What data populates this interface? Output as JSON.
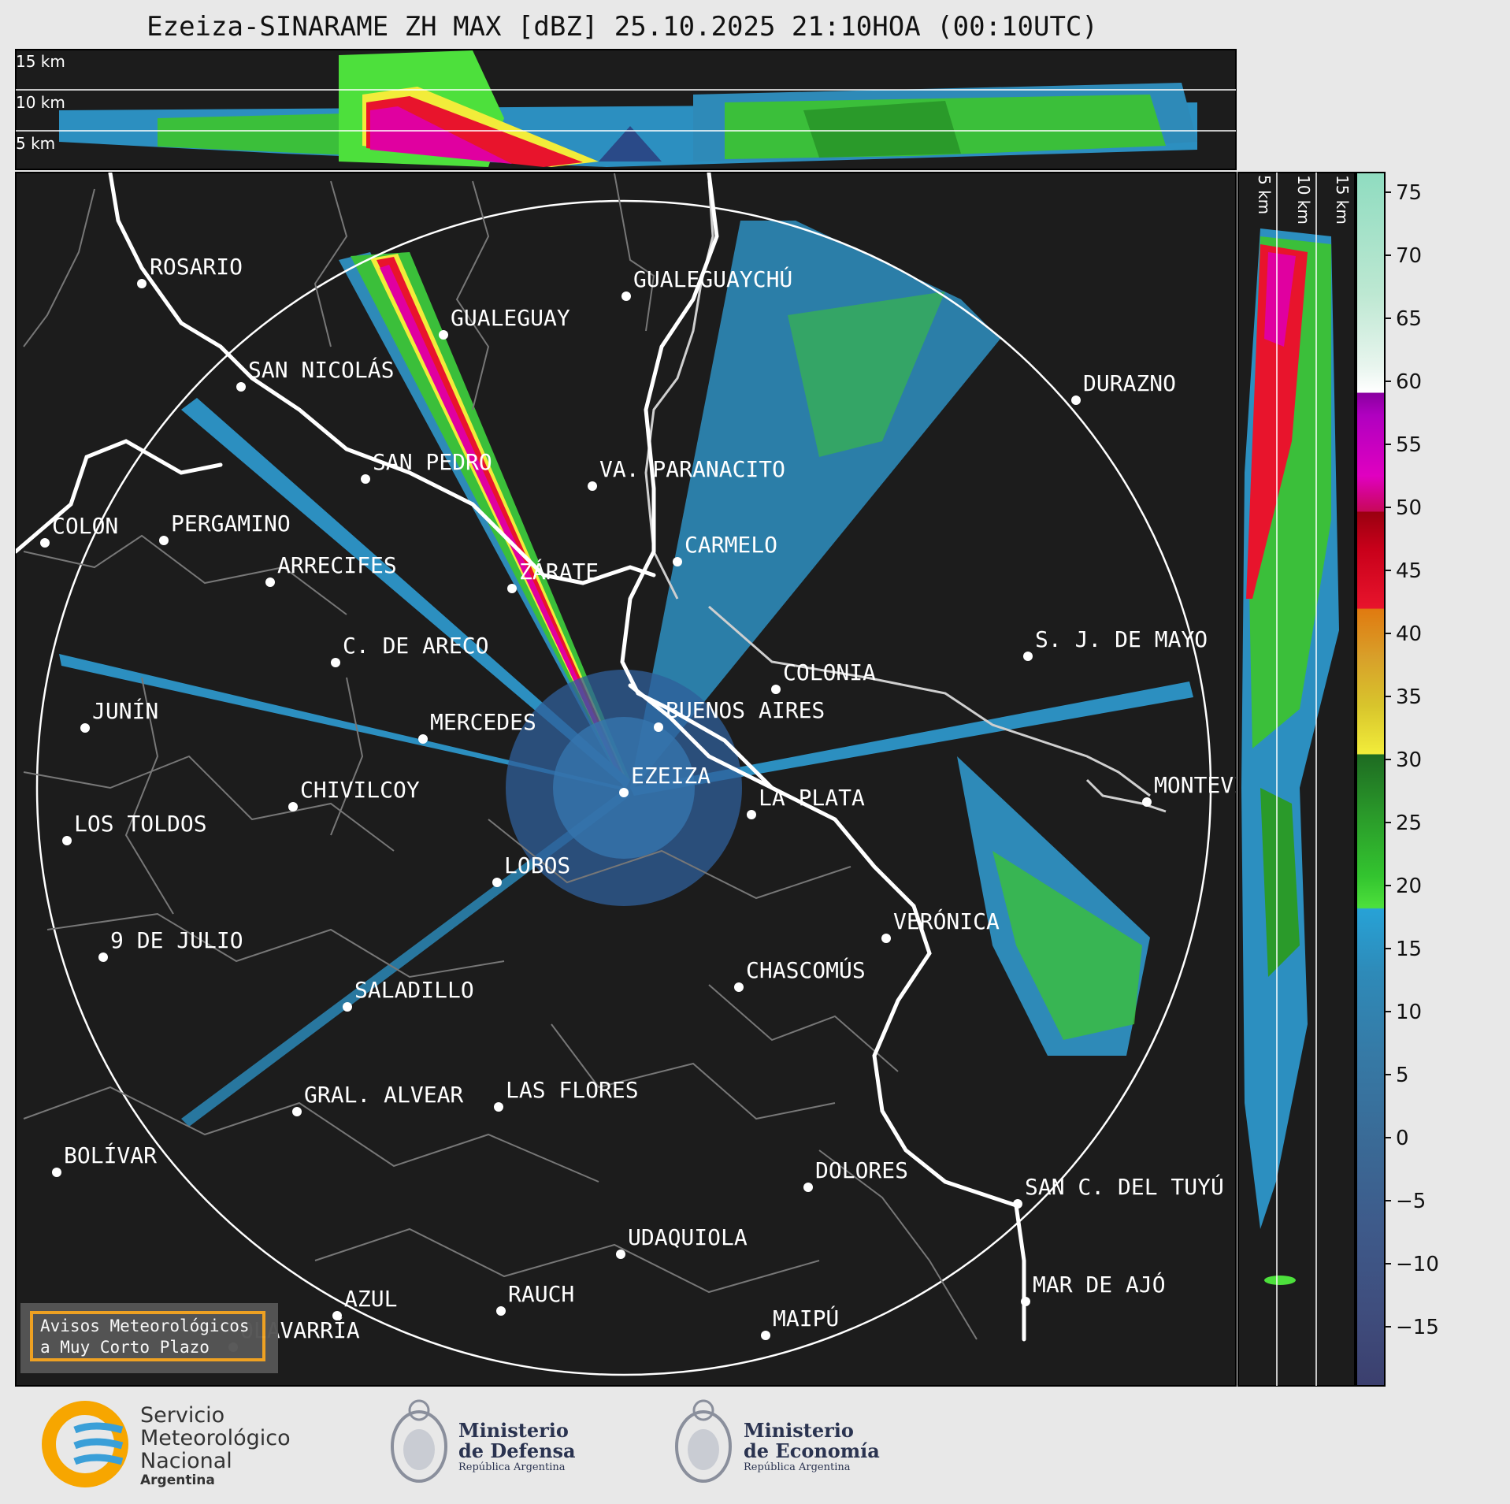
{
  "title": "Ezeiza-SINARAME ZH MAX [dBZ] 25.10.2025 21:10HOA (00:10UTC)",
  "top_panel_km_labels": [
    "15 km",
    "10 km",
    "5 km"
  ],
  "side_panel_km_labels": [
    "5 km",
    "10 km",
    "15 km"
  ],
  "colorbar": {
    "ticks": [
      "75",
      "70",
      "65",
      "60",
      "55",
      "50",
      "45",
      "40",
      "35",
      "30",
      "25",
      "20",
      "15",
      "10",
      "5",
      "0",
      "−5",
      "−10",
      "−15"
    ]
  },
  "cities": [
    "ROSARIO",
    "GUALEGUAYCHÚ",
    "GUALEGUAY",
    "SAN NICOLÁS",
    "DURAZNO",
    "SAN PEDRO",
    "VA. PARANACITO",
    "COLON",
    "PERGAMINO",
    "CARMELO",
    "ARRECIFES",
    "ZÁRATE",
    "S. J. DE MAYO",
    "C. DE ARECO",
    "COLONIA",
    "JUNÍN",
    "BUENOS AIRES",
    "MERCEDES",
    "EZEIZA",
    "MONTEVIDEO",
    "CHIVILCOY",
    "LA PLATA",
    "LOS TOLDOS",
    "LOBOS",
    "VERÓNICA",
    "9 DE JULIO",
    "CHASCOMÚS",
    "SALADILLO",
    "GRAL. ALVEAR",
    "LAS FLORES",
    "BOLÍVAR",
    "DOLORES",
    "SAN C. DEL TUYÚ",
    "UDAQUIOLA",
    "MAR DE AJÓ",
    "AZUL",
    "RAUCH",
    "OLAVARRÍA",
    "MAIPÚ"
  ],
  "warning": {
    "line1": "Avisos Meteorológicos",
    "line2": "a Muy Corto Plazo"
  },
  "logos": {
    "smn": {
      "line1": "Servicio",
      "line2": "Meteorológico",
      "line3": "Nacional",
      "line4": "Argentina"
    },
    "defensa": {
      "line1": "Ministerio",
      "line2": "de Defensa",
      "line3": "República Argentina"
    },
    "economia": {
      "line1": "Ministerio",
      "line2": "de Economía",
      "line3": "República Argentina"
    }
  },
  "colors": {
    "panel_bg": "#1c1c1c",
    "page_bg": "#e8e8e8",
    "smn_orange": "#f7a600",
    "smn_blue": "#3a9fd8"
  }
}
